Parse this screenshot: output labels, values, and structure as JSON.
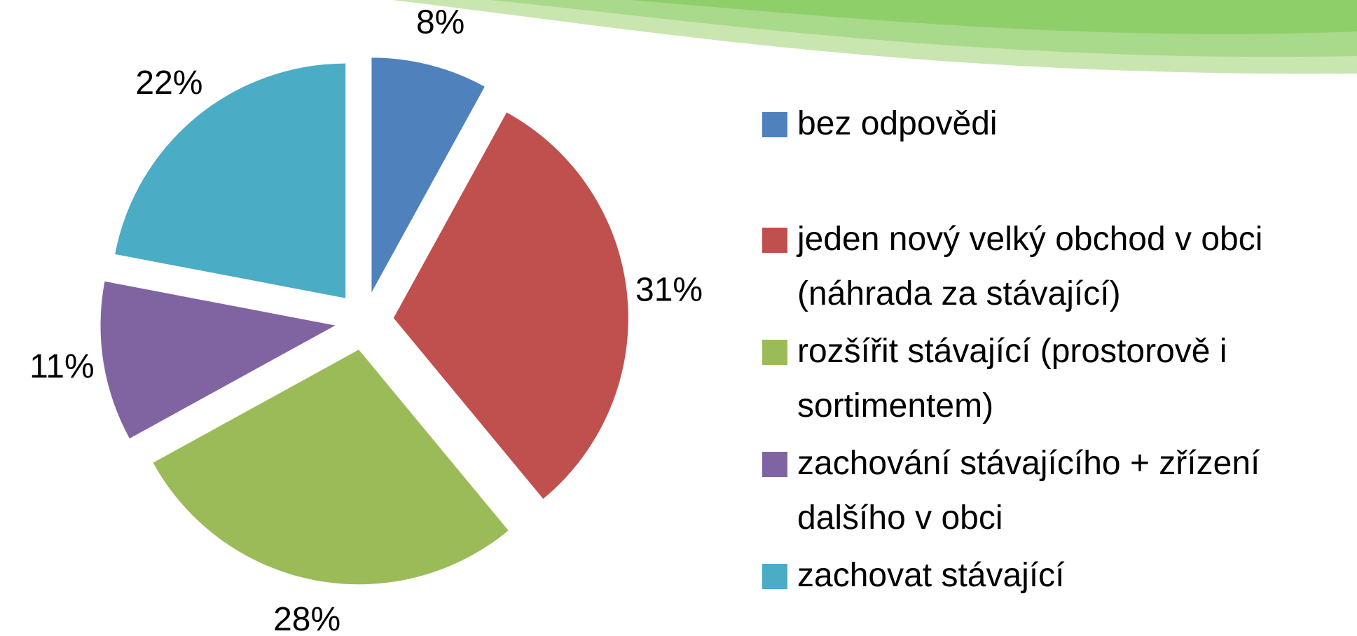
{
  "chart_data": {
    "type": "pie",
    "categories": [
      "bez odpovědi",
      "jeden nový velký obchod v obci (náhrada za stávající)",
      "rozšířit stávající (prostorově i sortimentem)",
      "zachování stávajícího + zřízení dalšího v obci",
      "zachovat stávající"
    ],
    "values": [
      8,
      31,
      28,
      11,
      22
    ],
    "value_labels": [
      "8%",
      "31%",
      "28%",
      "11%",
      "22%"
    ],
    "colors": [
      "#4f81bd",
      "#c0504d",
      "#9bbb59",
      "#8064a2",
      "#4bacc6"
    ],
    "legend": "right"
  }
}
